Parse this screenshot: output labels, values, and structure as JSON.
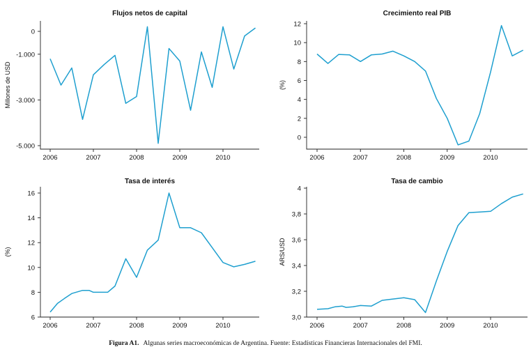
{
  "chart_data": [
    {
      "type": "line",
      "title": "Flujos netos de capital",
      "ylabel": "Millones de USD",
      "xlim": [
        2006,
        2010.8
      ],
      "ylim": [
        -5000,
        400
      ],
      "x_ticks": [
        "2006",
        "2007",
        "2008",
        "2009",
        "2010"
      ],
      "y_ticks": [
        "0",
        "-1.000",
        "-3.000",
        "-5.000"
      ],
      "y_tick_values": [
        0,
        -1000,
        -3000,
        -5000
      ],
      "color": "#1e9fcf",
      "x": [
        2006.0,
        2006.25,
        2006.5,
        2006.75,
        2007.0,
        2007.25,
        2007.5,
        2007.75,
        2008.0,
        2008.25,
        2008.5,
        2008.75,
        2009.0,
        2009.25,
        2009.5,
        2009.75,
        2010.0,
        2010.25,
        2010.5,
        2010.75
      ],
      "values": [
        -1200,
        -2350,
        -1600,
        -3850,
        -1900,
        -1450,
        -1050,
        -3150,
        -2850,
        200,
        -4900,
        -750,
        -1300,
        -3450,
        -900,
        -2450,
        200,
        -1650,
        -200,
        150
      ]
    },
    {
      "type": "line",
      "title": "Crecimiento real PIB",
      "ylabel": "(%)",
      "xlim": [
        2006,
        2010.8
      ],
      "ylim": [
        -1,
        12
      ],
      "x_ticks": [
        "2006",
        "2007",
        "2008",
        "2009",
        "2010"
      ],
      "y_ticks": [
        "0",
        "2",
        "4",
        "6",
        "8",
        "10",
        "12"
      ],
      "y_tick_values": [
        0,
        2,
        4,
        6,
        8,
        10,
        12
      ],
      "color": "#1e9fcf",
      "x": [
        2006.0,
        2006.25,
        2006.5,
        2006.75,
        2007.0,
        2007.25,
        2007.5,
        2007.75,
        2008.0,
        2008.25,
        2008.5,
        2008.75,
        2009.0,
        2009.25,
        2009.5,
        2009.75,
        2010.0,
        2010.25,
        2010.5,
        2010.75
      ],
      "values": [
        8.8,
        7.8,
        8.75,
        8.7,
        8.0,
        8.7,
        8.8,
        9.1,
        8.6,
        8.0,
        7.0,
        4.1,
        2.0,
        -0.8,
        -0.4,
        2.5,
        6.9,
        11.8,
        8.6,
        9.2
      ]
    },
    {
      "type": "line",
      "title": "Tasa de interés",
      "ylabel": "(%)",
      "xlim": [
        2006,
        2010.8
      ],
      "ylim": [
        6,
        16.5
      ],
      "x_ticks": [
        "2006",
        "2007",
        "2008",
        "2009",
        "2010"
      ],
      "y_ticks": [
        "6",
        "8",
        "10",
        "12",
        "14",
        "16"
      ],
      "y_tick_values": [
        6,
        8,
        10,
        12,
        14,
        16
      ],
      "color": "#1e9fcf",
      "x": [
        2006.0,
        2006.17,
        2006.33,
        2006.5,
        2006.75,
        2006.9,
        2007.0,
        2007.33,
        2007.5,
        2007.75,
        2008.0,
        2008.25,
        2008.5,
        2008.75,
        2009.0,
        2009.25,
        2009.5,
        2009.75,
        2010.0,
        2010.25,
        2010.5,
        2010.75
      ],
      "values": [
        6.4,
        7.1,
        7.5,
        7.9,
        8.15,
        8.15,
        8.0,
        8.0,
        8.5,
        10.7,
        9.2,
        11.4,
        12.2,
        16.0,
        13.2,
        13.2,
        12.8,
        11.6,
        10.4,
        10.05,
        10.25,
        10.5
      ]
    },
    {
      "type": "line",
      "title": "Tasa de cambio",
      "ylabel": "ARS/USD",
      "xlim": [
        2006,
        2010.8
      ],
      "ylim": [
        3.0,
        4.0
      ],
      "x_ticks": [
        "2006",
        "2007",
        "2008",
        "2009",
        "2010"
      ],
      "y_ticks": [
        "3,0",
        "3,2",
        "3,4",
        "3,6",
        "3,8",
        "4"
      ],
      "y_tick_values": [
        3.0,
        3.2,
        3.4,
        3.6,
        3.8,
        4.0
      ],
      "color": "#1e9fcf",
      "x": [
        2006.0,
        2006.25,
        2006.42,
        2006.58,
        2006.67,
        2006.83,
        2007.0,
        2007.25,
        2007.5,
        2007.75,
        2008.0,
        2008.25,
        2008.5,
        2008.75,
        2009.0,
        2009.25,
        2009.5,
        2009.75,
        2010.0,
        2010.25,
        2010.5,
        2010.75
      ],
      "values": [
        3.06,
        3.065,
        3.08,
        3.085,
        3.075,
        3.08,
        3.09,
        3.085,
        3.13,
        3.14,
        3.15,
        3.135,
        3.035,
        3.28,
        3.51,
        3.71,
        3.81,
        3.815,
        3.82,
        3.88,
        3.93,
        3.955
      ]
    }
  ],
  "caption": {
    "label": "Figura A1.",
    "text": "Algunas series macroeconómicas de Argentina. Fuente: Estadísticas Financieras Internacionales del FMI."
  }
}
